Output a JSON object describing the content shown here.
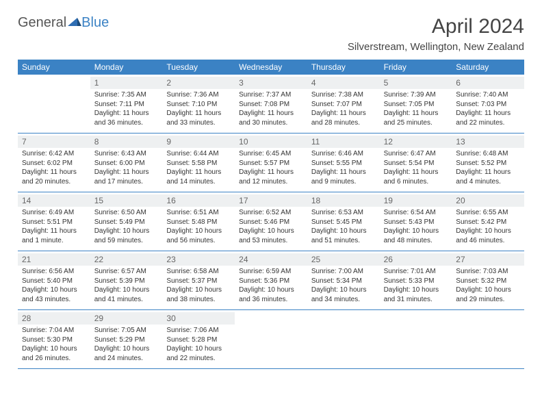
{
  "logo": {
    "text1": "General",
    "text2": "Blue",
    "shape_color": "#2e6db3"
  },
  "title": "April 2024",
  "location": "Silverstream, Wellington, New Zealand",
  "colors": {
    "header_bg": "#3b82c4",
    "header_text": "#ffffff",
    "daynum_bg": "#eef0f1",
    "border": "#3b82c4",
    "text": "#333333"
  },
  "day_labels": [
    "Sunday",
    "Monday",
    "Tuesday",
    "Wednesday",
    "Thursday",
    "Friday",
    "Saturday"
  ],
  "weeks": [
    [
      {
        "n": "",
        "lines": []
      },
      {
        "n": "1",
        "lines": [
          "Sunrise: 7:35 AM",
          "Sunset: 7:11 PM",
          "Daylight: 11 hours",
          "and 36 minutes."
        ]
      },
      {
        "n": "2",
        "lines": [
          "Sunrise: 7:36 AM",
          "Sunset: 7:10 PM",
          "Daylight: 11 hours",
          "and 33 minutes."
        ]
      },
      {
        "n": "3",
        "lines": [
          "Sunrise: 7:37 AM",
          "Sunset: 7:08 PM",
          "Daylight: 11 hours",
          "and 30 minutes."
        ]
      },
      {
        "n": "4",
        "lines": [
          "Sunrise: 7:38 AM",
          "Sunset: 7:07 PM",
          "Daylight: 11 hours",
          "and 28 minutes."
        ]
      },
      {
        "n": "5",
        "lines": [
          "Sunrise: 7:39 AM",
          "Sunset: 7:05 PM",
          "Daylight: 11 hours",
          "and 25 minutes."
        ]
      },
      {
        "n": "6",
        "lines": [
          "Sunrise: 7:40 AM",
          "Sunset: 7:03 PM",
          "Daylight: 11 hours",
          "and 22 minutes."
        ]
      }
    ],
    [
      {
        "n": "7",
        "lines": [
          "Sunrise: 6:42 AM",
          "Sunset: 6:02 PM",
          "Daylight: 11 hours",
          "and 20 minutes."
        ]
      },
      {
        "n": "8",
        "lines": [
          "Sunrise: 6:43 AM",
          "Sunset: 6:00 PM",
          "Daylight: 11 hours",
          "and 17 minutes."
        ]
      },
      {
        "n": "9",
        "lines": [
          "Sunrise: 6:44 AM",
          "Sunset: 5:58 PM",
          "Daylight: 11 hours",
          "and 14 minutes."
        ]
      },
      {
        "n": "10",
        "lines": [
          "Sunrise: 6:45 AM",
          "Sunset: 5:57 PM",
          "Daylight: 11 hours",
          "and 12 minutes."
        ]
      },
      {
        "n": "11",
        "lines": [
          "Sunrise: 6:46 AM",
          "Sunset: 5:55 PM",
          "Daylight: 11 hours",
          "and 9 minutes."
        ]
      },
      {
        "n": "12",
        "lines": [
          "Sunrise: 6:47 AM",
          "Sunset: 5:54 PM",
          "Daylight: 11 hours",
          "and 6 minutes."
        ]
      },
      {
        "n": "13",
        "lines": [
          "Sunrise: 6:48 AM",
          "Sunset: 5:52 PM",
          "Daylight: 11 hours",
          "and 4 minutes."
        ]
      }
    ],
    [
      {
        "n": "14",
        "lines": [
          "Sunrise: 6:49 AM",
          "Sunset: 5:51 PM",
          "Daylight: 11 hours",
          "and 1 minute."
        ]
      },
      {
        "n": "15",
        "lines": [
          "Sunrise: 6:50 AM",
          "Sunset: 5:49 PM",
          "Daylight: 10 hours",
          "and 59 minutes."
        ]
      },
      {
        "n": "16",
        "lines": [
          "Sunrise: 6:51 AM",
          "Sunset: 5:48 PM",
          "Daylight: 10 hours",
          "and 56 minutes."
        ]
      },
      {
        "n": "17",
        "lines": [
          "Sunrise: 6:52 AM",
          "Sunset: 5:46 PM",
          "Daylight: 10 hours",
          "and 53 minutes."
        ]
      },
      {
        "n": "18",
        "lines": [
          "Sunrise: 6:53 AM",
          "Sunset: 5:45 PM",
          "Daylight: 10 hours",
          "and 51 minutes."
        ]
      },
      {
        "n": "19",
        "lines": [
          "Sunrise: 6:54 AM",
          "Sunset: 5:43 PM",
          "Daylight: 10 hours",
          "and 48 minutes."
        ]
      },
      {
        "n": "20",
        "lines": [
          "Sunrise: 6:55 AM",
          "Sunset: 5:42 PM",
          "Daylight: 10 hours",
          "and 46 minutes."
        ]
      }
    ],
    [
      {
        "n": "21",
        "lines": [
          "Sunrise: 6:56 AM",
          "Sunset: 5:40 PM",
          "Daylight: 10 hours",
          "and 43 minutes."
        ]
      },
      {
        "n": "22",
        "lines": [
          "Sunrise: 6:57 AM",
          "Sunset: 5:39 PM",
          "Daylight: 10 hours",
          "and 41 minutes."
        ]
      },
      {
        "n": "23",
        "lines": [
          "Sunrise: 6:58 AM",
          "Sunset: 5:37 PM",
          "Daylight: 10 hours",
          "and 38 minutes."
        ]
      },
      {
        "n": "24",
        "lines": [
          "Sunrise: 6:59 AM",
          "Sunset: 5:36 PM",
          "Daylight: 10 hours",
          "and 36 minutes."
        ]
      },
      {
        "n": "25",
        "lines": [
          "Sunrise: 7:00 AM",
          "Sunset: 5:34 PM",
          "Daylight: 10 hours",
          "and 34 minutes."
        ]
      },
      {
        "n": "26",
        "lines": [
          "Sunrise: 7:01 AM",
          "Sunset: 5:33 PM",
          "Daylight: 10 hours",
          "and 31 minutes."
        ]
      },
      {
        "n": "27",
        "lines": [
          "Sunrise: 7:03 AM",
          "Sunset: 5:32 PM",
          "Daylight: 10 hours",
          "and 29 minutes."
        ]
      }
    ],
    [
      {
        "n": "28",
        "lines": [
          "Sunrise: 7:04 AM",
          "Sunset: 5:30 PM",
          "Daylight: 10 hours",
          "and 26 minutes."
        ]
      },
      {
        "n": "29",
        "lines": [
          "Sunrise: 7:05 AM",
          "Sunset: 5:29 PM",
          "Daylight: 10 hours",
          "and 24 minutes."
        ]
      },
      {
        "n": "30",
        "lines": [
          "Sunrise: 7:06 AM",
          "Sunset: 5:28 PM",
          "Daylight: 10 hours",
          "and 22 minutes."
        ]
      },
      {
        "n": "",
        "lines": []
      },
      {
        "n": "",
        "lines": []
      },
      {
        "n": "",
        "lines": []
      },
      {
        "n": "",
        "lines": []
      }
    ]
  ]
}
